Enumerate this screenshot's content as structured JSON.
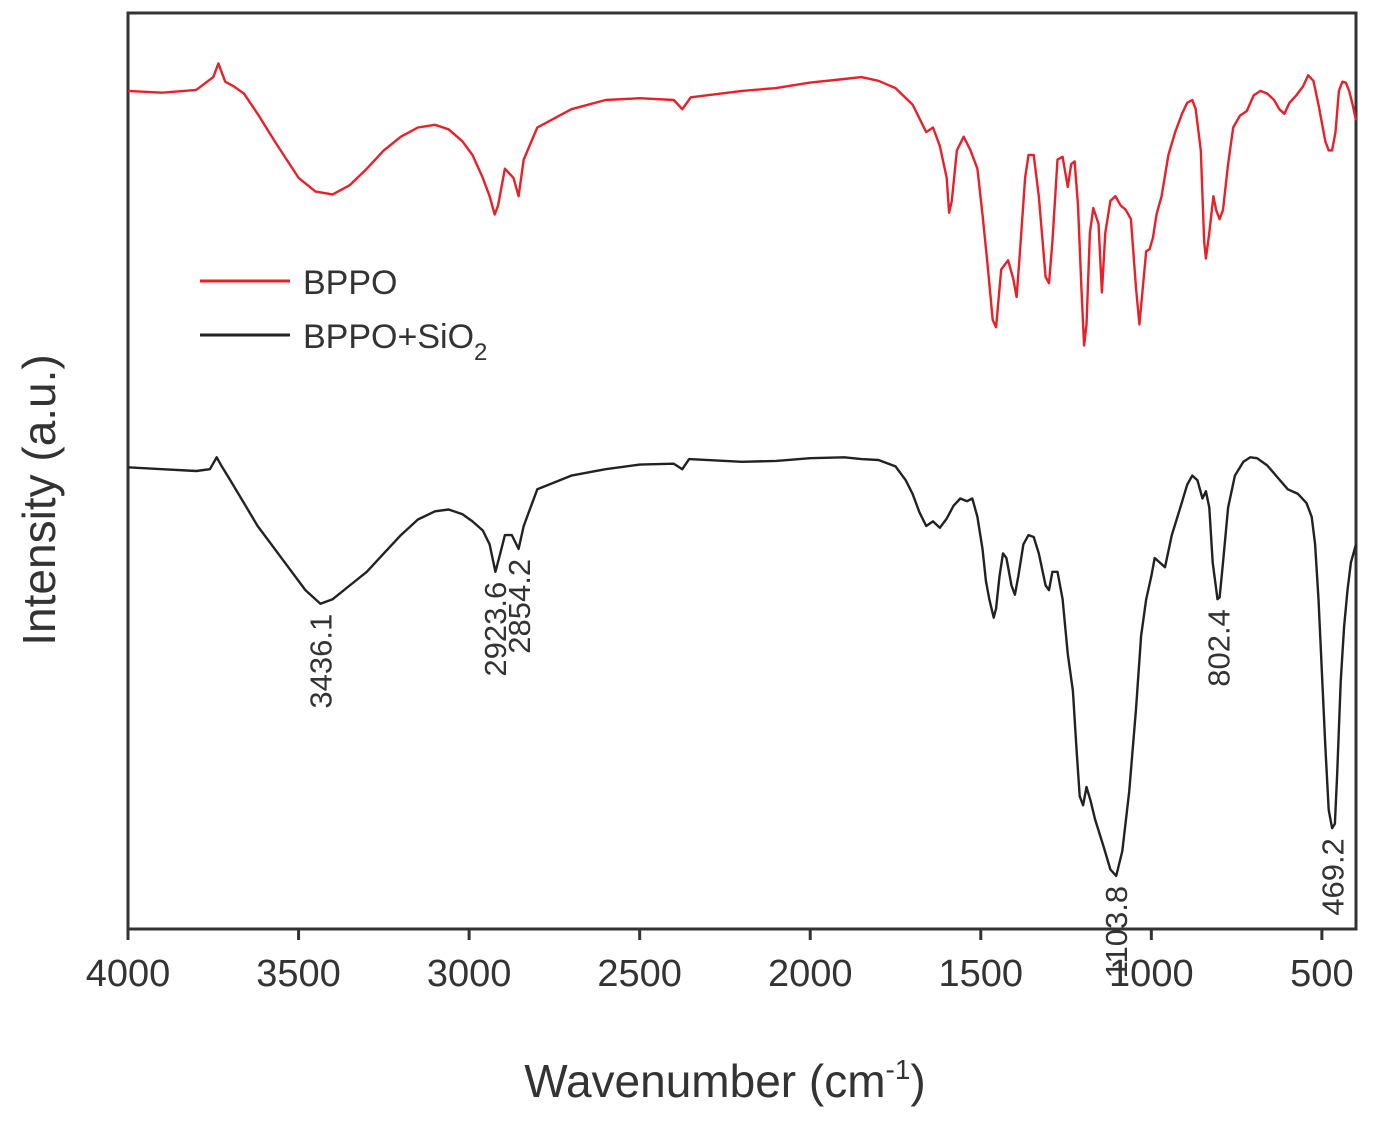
{
  "chart_data": {
    "type": "line",
    "title": "",
    "xlabel": "Wavenumber (cm",
    "xlabel_sup": "-1",
    "xlabel_close": ")",
    "ylabel": "Intensity (a.u.)",
    "xlim": [
      4000,
      400
    ],
    "x_reversed": true,
    "x_ticks": [
      "4000",
      "3500",
      "3000",
      "2500",
      "2000",
      "1500",
      "1000",
      "500"
    ],
    "x_tick_values": [
      4000,
      3500,
      3000,
      2500,
      2000,
      1500,
      1000,
      500
    ],
    "ylim": [
      0,
      1
    ],
    "y_ticks_shown": false,
    "grid": false,
    "legend_position": "upper-left",
    "series": [
      {
        "name": "BPPO",
        "color": "#e8202a",
        "points": [
          [
            4000,
            0.915
          ],
          [
            3900,
            0.913
          ],
          [
            3800,
            0.916
          ],
          [
            3750,
            0.93
          ],
          [
            3735,
            0.945
          ],
          [
            3715,
            0.925
          ],
          [
            3690,
            0.92
          ],
          [
            3660,
            0.912
          ],
          [
            3620,
            0.89
          ],
          [
            3570,
            0.86
          ],
          [
            3500,
            0.82
          ],
          [
            3450,
            0.805
          ],
          [
            3400,
            0.802
          ],
          [
            3350,
            0.812
          ],
          [
            3300,
            0.83
          ],
          [
            3250,
            0.85
          ],
          [
            3200,
            0.865
          ],
          [
            3150,
            0.875
          ],
          [
            3100,
            0.878
          ],
          [
            3060,
            0.873
          ],
          [
            3020,
            0.86
          ],
          [
            2990,
            0.845
          ],
          [
            2960,
            0.82
          ],
          [
            2940,
            0.8
          ],
          [
            2925,
            0.78
          ],
          [
            2915,
            0.79
          ],
          [
            2895,
            0.83
          ],
          [
            2870,
            0.82
          ],
          [
            2855,
            0.8
          ],
          [
            2840,
            0.84
          ],
          [
            2800,
            0.875
          ],
          [
            2700,
            0.895
          ],
          [
            2600,
            0.905
          ],
          [
            2500,
            0.907
          ],
          [
            2400,
            0.905
          ],
          [
            2375,
            0.895
          ],
          [
            2350,
            0.908
          ],
          [
            2200,
            0.915
          ],
          [
            2100,
            0.918
          ],
          [
            2000,
            0.924
          ],
          [
            1900,
            0.928
          ],
          [
            1850,
            0.93
          ],
          [
            1800,
            0.926
          ],
          [
            1750,
            0.918
          ],
          [
            1700,
            0.9
          ],
          [
            1680,
            0.885
          ],
          [
            1660,
            0.87
          ],
          [
            1640,
            0.875
          ],
          [
            1620,
            0.855
          ],
          [
            1600,
            0.82
          ],
          [
            1593,
            0.782
          ],
          [
            1585,
            0.795
          ],
          [
            1570,
            0.85
          ],
          [
            1550,
            0.865
          ],
          [
            1530,
            0.85
          ],
          [
            1510,
            0.83
          ],
          [
            1495,
            0.78
          ],
          [
            1480,
            0.725
          ],
          [
            1465,
            0.665
          ],
          [
            1455,
            0.657
          ],
          [
            1440,
            0.72
          ],
          [
            1420,
            0.73
          ],
          [
            1405,
            0.71
          ],
          [
            1395,
            0.69
          ],
          [
            1385,
            0.74
          ],
          [
            1370,
            0.82
          ],
          [
            1360,
            0.845
          ],
          [
            1345,
            0.845
          ],
          [
            1330,
            0.8
          ],
          [
            1310,
            0.712
          ],
          [
            1300,
            0.705
          ],
          [
            1290,
            0.75
          ],
          [
            1275,
            0.84
          ],
          [
            1260,
            0.843
          ],
          [
            1245,
            0.81
          ],
          [
            1235,
            0.835
          ],
          [
            1225,
            0.838
          ],
          [
            1215,
            0.79
          ],
          [
            1205,
            0.7
          ],
          [
            1197,
            0.637
          ],
          [
            1190,
            0.66
          ],
          [
            1180,
            0.76
          ],
          [
            1170,
            0.787
          ],
          [
            1155,
            0.77
          ],
          [
            1145,
            0.695
          ],
          [
            1135,
            0.76
          ],
          [
            1120,
            0.795
          ],
          [
            1105,
            0.8
          ],
          [
            1090,
            0.79
          ],
          [
            1075,
            0.785
          ],
          [
            1060,
            0.775
          ],
          [
            1045,
            0.7
          ],
          [
            1035,
            0.66
          ],
          [
            1025,
            0.7
          ],
          [
            1015,
            0.74
          ],
          [
            1005,
            0.742
          ],
          [
            995,
            0.755
          ],
          [
            985,
            0.78
          ],
          [
            970,
            0.8
          ],
          [
            950,
            0.845
          ],
          [
            930,
            0.87
          ],
          [
            910,
            0.89
          ],
          [
            895,
            0.902
          ],
          [
            880,
            0.905
          ],
          [
            870,
            0.895
          ],
          [
            855,
            0.85
          ],
          [
            845,
            0.75
          ],
          [
            840,
            0.732
          ],
          [
            830,
            0.76
          ],
          [
            818,
            0.8
          ],
          [
            810,
            0.785
          ],
          [
            800,
            0.775
          ],
          [
            790,
            0.785
          ],
          [
            775,
            0.835
          ],
          [
            760,
            0.875
          ],
          [
            740,
            0.888
          ],
          [
            720,
            0.893
          ],
          [
            700,
            0.91
          ],
          [
            680,
            0.915
          ],
          [
            660,
            0.912
          ],
          [
            640,
            0.905
          ],
          [
            625,
            0.895
          ],
          [
            610,
            0.89
          ],
          [
            595,
            0.902
          ],
          [
            575,
            0.91
          ],
          [
            555,
            0.92
          ],
          [
            540,
            0.932
          ],
          [
            525,
            0.926
          ],
          [
            510,
            0.9
          ],
          [
            500,
            0.88
          ],
          [
            490,
            0.86
          ],
          [
            480,
            0.85
          ],
          [
            470,
            0.85
          ],
          [
            460,
            0.87
          ],
          [
            450,
            0.915
          ],
          [
            440,
            0.925
          ],
          [
            430,
            0.924
          ],
          [
            420,
            0.915
          ],
          [
            410,
            0.9
          ],
          [
            400,
            0.883
          ]
        ]
      },
      {
        "name": "BPPO+SiO",
        "name_sub": "2",
        "color": "#222222",
        "points": [
          [
            4000,
            0.504
          ],
          [
            3900,
            0.502
          ],
          [
            3800,
            0.5
          ],
          [
            3760,
            0.502
          ],
          [
            3740,
            0.515
          ],
          [
            3725,
            0.505
          ],
          [
            3700,
            0.49
          ],
          [
            3660,
            0.465
          ],
          [
            3620,
            0.44
          ],
          [
            3580,
            0.42
          ],
          [
            3530,
            0.395
          ],
          [
            3480,
            0.37
          ],
          [
            3436,
            0.355
          ],
          [
            3400,
            0.36
          ],
          [
            3350,
            0.375
          ],
          [
            3300,
            0.39
          ],
          [
            3250,
            0.41
          ],
          [
            3200,
            0.43
          ],
          [
            3150,
            0.447
          ],
          [
            3100,
            0.456
          ],
          [
            3060,
            0.458
          ],
          [
            3020,
            0.453
          ],
          [
            2990,
            0.445
          ],
          [
            2960,
            0.435
          ],
          [
            2940,
            0.42
          ],
          [
            2923,
            0.39
          ],
          [
            2910,
            0.408
          ],
          [
            2895,
            0.43
          ],
          [
            2875,
            0.43
          ],
          [
            2855,
            0.415
          ],
          [
            2840,
            0.44
          ],
          [
            2800,
            0.48
          ],
          [
            2700,
            0.495
          ],
          [
            2600,
            0.502
          ],
          [
            2500,
            0.507
          ],
          [
            2400,
            0.508
          ],
          [
            2375,
            0.502
          ],
          [
            2355,
            0.513
          ],
          [
            2200,
            0.51
          ],
          [
            2100,
            0.511
          ],
          [
            2000,
            0.514
          ],
          [
            1900,
            0.515
          ],
          [
            1850,
            0.513
          ],
          [
            1800,
            0.512
          ],
          [
            1750,
            0.505
          ],
          [
            1720,
            0.49
          ],
          [
            1700,
            0.475
          ],
          [
            1680,
            0.455
          ],
          [
            1660,
            0.44
          ],
          [
            1640,
            0.445
          ],
          [
            1620,
            0.438
          ],
          [
            1600,
            0.448
          ],
          [
            1580,
            0.462
          ],
          [
            1560,
            0.47
          ],
          [
            1540,
            0.467
          ],
          [
            1525,
            0.47
          ],
          [
            1510,
            0.45
          ],
          [
            1495,
            0.415
          ],
          [
            1485,
            0.38
          ],
          [
            1475,
            0.36
          ],
          [
            1462,
            0.34
          ],
          [
            1455,
            0.35
          ],
          [
            1445,
            0.385
          ],
          [
            1435,
            0.41
          ],
          [
            1425,
            0.405
          ],
          [
            1410,
            0.375
          ],
          [
            1400,
            0.365
          ],
          [
            1390,
            0.385
          ],
          [
            1375,
            0.42
          ],
          [
            1360,
            0.43
          ],
          [
            1345,
            0.428
          ],
          [
            1330,
            0.41
          ],
          [
            1310,
            0.375
          ],
          [
            1300,
            0.37
          ],
          [
            1290,
            0.39
          ],
          [
            1275,
            0.39
          ],
          [
            1260,
            0.36
          ],
          [
            1245,
            0.3
          ],
          [
            1230,
            0.26
          ],
          [
            1220,
            0.2
          ],
          [
            1210,
            0.145
          ],
          [
            1200,
            0.135
          ],
          [
            1190,
            0.155
          ],
          [
            1178,
            0.14
          ],
          [
            1165,
            0.12
          ],
          [
            1140,
            0.09
          ],
          [
            1120,
            0.065
          ],
          [
            1103,
            0.058
          ],
          [
            1085,
            0.085
          ],
          [
            1065,
            0.15
          ],
          [
            1045,
            0.24
          ],
          [
            1030,
            0.32
          ],
          [
            1015,
            0.36
          ],
          [
            1000,
            0.385
          ],
          [
            990,
            0.405
          ],
          [
            975,
            0.4
          ],
          [
            960,
            0.395
          ],
          [
            940,
            0.43
          ],
          [
            915,
            0.46
          ],
          [
            895,
            0.485
          ],
          [
            880,
            0.495
          ],
          [
            865,
            0.49
          ],
          [
            850,
            0.47
          ],
          [
            840,
            0.478
          ],
          [
            830,
            0.46
          ],
          [
            820,
            0.4
          ],
          [
            806,
            0.36
          ],
          [
            800,
            0.362
          ],
          [
            790,
            0.4
          ],
          [
            775,
            0.46
          ],
          [
            755,
            0.495
          ],
          [
            730,
            0.51
          ],
          [
            710,
            0.515
          ],
          [
            690,
            0.514
          ],
          [
            660,
            0.506
          ],
          [
            630,
            0.493
          ],
          [
            600,
            0.48
          ],
          [
            570,
            0.475
          ],
          [
            545,
            0.465
          ],
          [
            530,
            0.45
          ],
          [
            520,
            0.42
          ],
          [
            510,
            0.36
          ],
          [
            500,
            0.28
          ],
          [
            490,
            0.2
          ],
          [
            480,
            0.13
          ],
          [
            470,
            0.11
          ],
          [
            462,
            0.115
          ],
          [
            455,
            0.17
          ],
          [
            445,
            0.27
          ],
          [
            435,
            0.33
          ],
          [
            425,
            0.37
          ],
          [
            415,
            0.4
          ],
          [
            400,
            0.42
          ]
        ]
      }
    ],
    "annotations": [
      {
        "text": "3436.1",
        "x": 3436.1,
        "y": 0.355,
        "series": 1
      },
      {
        "text": "2923.6",
        "x": 2923.6,
        "y": 0.39,
        "series": 1
      },
      {
        "text": "2854.2",
        "x": 2854.2,
        "y": 0.415,
        "series": 1
      },
      {
        "text": "1103.8",
        "x": 1103.8,
        "y": 0.058,
        "series": 1
      },
      {
        "text": "802.4",
        "x": 802.4,
        "y": 0.36,
        "series": 1
      },
      {
        "text": "469.2",
        "x": 469.2,
        "y": 0.11,
        "series": 1
      }
    ]
  }
}
